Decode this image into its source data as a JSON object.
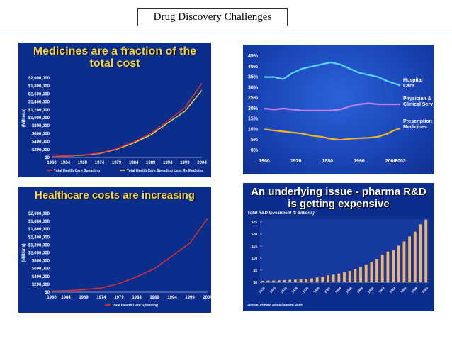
{
  "slide": {
    "title": "Drug Discovery Challenges"
  },
  "chart_data": [
    {
      "type": "line",
      "title": "Medicines are a fraction of the total cost",
      "xlabel": "",
      "ylabel": "(Millions)",
      "x": [
        1960,
        1964,
        1969,
        1974,
        1979,
        1984,
        1989,
        1994,
        1999,
        2004
      ],
      "ylim": [
        0,
        2000000
      ],
      "yticks": [
        "$0",
        "$200,000",
        "$400,000",
        "$600,000",
        "$800,000",
        "$1,000,000",
        "$1,200,000",
        "$1,400,000",
        "$1,600,000",
        "$1,800,000",
        "$2,000,000"
      ],
      "series": [
        {
          "name": "Total Health Care Spending",
          "color": "#e8302a",
          "values": [
            27000,
            40000,
            65000,
            110000,
            220000,
            390000,
            600000,
            920000,
            1250000,
            1870000
          ]
        },
        {
          "name": "Total Health Care Spending Less Rx Medicine",
          "color": "#f0e24a",
          "values": [
            24000,
            36000,
            58000,
            100000,
            205000,
            365000,
            565000,
            870000,
            1160000,
            1690000
          ]
        }
      ],
      "legend": "bottom"
    },
    {
      "type": "line",
      "title": "",
      "x": [
        1960,
        1963,
        1966,
        1969,
        1972,
        1975,
        1978,
        1981,
        1984,
        1987,
        1990,
        1993,
        1996,
        1999,
        2001,
        2003
      ],
      "xticks": [
        "1960",
        "1970",
        "1980",
        "1990",
        "2000",
        "2003"
      ],
      "ylim": [
        0,
        45
      ],
      "yticks": [
        "0%",
        "5%",
        "10%",
        "15%",
        "20%",
        "25%",
        "30%",
        "35%",
        "40%",
        "45%"
      ],
      "series": [
        {
          "name": "Hospital Care",
          "color": "#5ad8f5",
          "values": [
            35,
            35,
            34,
            37,
            39,
            40,
            41,
            42,
            41,
            39,
            37,
            36,
            35,
            33,
            32,
            31
          ]
        },
        {
          "name": "Physician & Clinical Serv",
          "color": "#c77df0",
          "values": [
            20,
            19.5,
            20,
            19.5,
            19,
            19,
            19,
            19,
            19.5,
            21,
            22,
            22.5,
            22,
            22,
            22,
            22
          ]
        },
        {
          "name": "Prescription Medicines",
          "color": "#f2b623",
          "values": [
            10,
            9.5,
            9,
            8.5,
            8,
            7,
            6.5,
            5.5,
            5,
            5.5,
            5.8,
            6,
            6.5,
            8,
            9.5,
            10.5
          ]
        }
      ],
      "legend": "right"
    },
    {
      "type": "line",
      "title": "Healthcare costs are increasing",
      "ylabel": "(Millions)",
      "x": [
        1960,
        1964,
        1969,
        1974,
        1979,
        1984,
        1989,
        1994,
        1999,
        2004
      ],
      "ylim": [
        0,
        2000000
      ],
      "yticks": [
        "$0",
        "$200,000",
        "$400,000",
        "$600,000",
        "$800,000",
        "$1,000,000",
        "$1,200,000",
        "$1,400,000",
        "$1,600,000",
        "$1,800,000",
        "$2,000,000"
      ],
      "series": [
        {
          "name": "Total Health Care Spending",
          "color": "#e8302a",
          "values": [
            27000,
            40000,
            65000,
            110000,
            220000,
            390000,
            600000,
            920000,
            1250000,
            1870000
          ]
        }
      ],
      "legend": "bottom"
    },
    {
      "type": "bar",
      "title": "An underlying issue - pharma R&D is getting expensive",
      "subtitle": "Total R&D Investment ($ Billions)",
      "categories": [
        "1970",
        "1971",
        "1972",
        "1973",
        "1974",
        "1975",
        "1976",
        "1977",
        "1978",
        "1979",
        "1980",
        "1981",
        "1982",
        "1983",
        "1984",
        "1985",
        "1986",
        "1987",
        "1988",
        "1989",
        "1990",
        "1991",
        "1992",
        "1993",
        "1994",
        "1995",
        "1996",
        "1997",
        "1998",
        "1999",
        "2000"
      ],
      "xticks": [
        "1970",
        "1972",
        "1974",
        "1976",
        "1978",
        "1980",
        "1982",
        "1984",
        "1986",
        "1988",
        "1990",
        "1992",
        "1994",
        "1996",
        "1998",
        "2000"
      ],
      "values": [
        0.6,
        0.7,
        0.7,
        0.8,
        0.9,
        1.0,
        1.1,
        1.3,
        1.4,
        1.6,
        2.0,
        2.3,
        2.9,
        3.2,
        3.6,
        4.1,
        4.7,
        5.5,
        6.5,
        7.3,
        8.4,
        9.7,
        11.5,
        12.7,
        13.4,
        15.2,
        16.9,
        19.0,
        21.0,
        24.0,
        26.0
      ],
      "ylim": [
        0,
        25
      ],
      "yticks": [
        "$0",
        "$5",
        "$10",
        "$15",
        "$20",
        "$25"
      ],
      "source": "Source: PhRMA annual survey, 2000",
      "bar_color": "#f2b26a"
    }
  ]
}
